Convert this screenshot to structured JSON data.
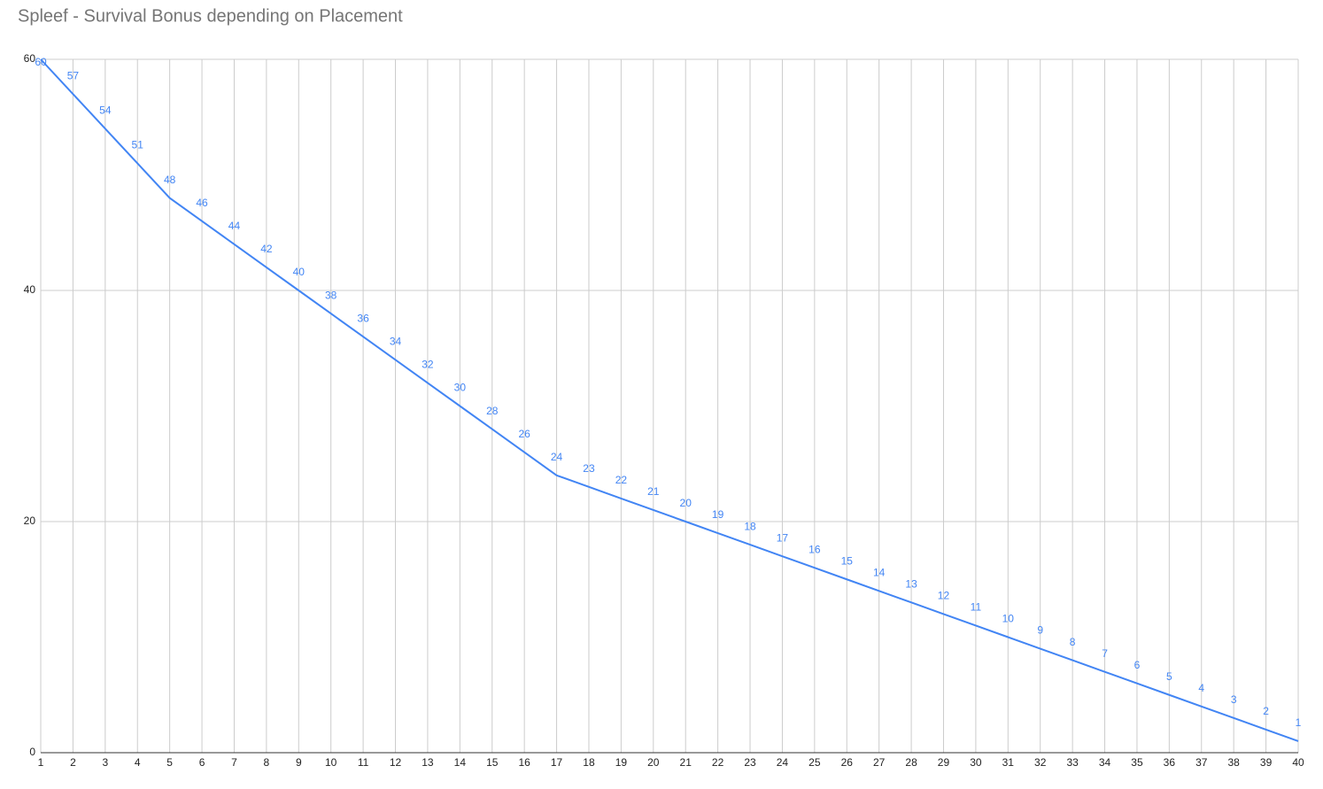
{
  "chart_data": {
    "type": "line",
    "title": "Spleef - Survival Bonus depending on Placement",
    "x": [
      1,
      2,
      3,
      4,
      5,
      6,
      7,
      8,
      9,
      10,
      11,
      12,
      13,
      14,
      15,
      16,
      17,
      18,
      19,
      20,
      21,
      22,
      23,
      24,
      25,
      26,
      27,
      28,
      29,
      30,
      31,
      32,
      33,
      34,
      35,
      36,
      37,
      38,
      39,
      40
    ],
    "series": [
      {
        "name": "Survival Bonus",
        "color": "#4285f4",
        "values": [
          60,
          57,
          54,
          51,
          48,
          46,
          44,
          42,
          40,
          38,
          36,
          34,
          32,
          30,
          28,
          26,
          24,
          23,
          22,
          21,
          20,
          19,
          18,
          17,
          16,
          15,
          14,
          13,
          12,
          11,
          10,
          9,
          8,
          7,
          6,
          5,
          4,
          3,
          2,
          1
        ]
      }
    ],
    "xlim": [
      1,
      40
    ],
    "xticks": [
      1,
      2,
      3,
      4,
      5,
      6,
      7,
      8,
      9,
      10,
      11,
      12,
      13,
      14,
      15,
      16,
      17,
      18,
      19,
      20,
      21,
      22,
      23,
      24,
      25,
      26,
      27,
      28,
      29,
      30,
      31,
      32,
      33,
      34,
      35,
      36,
      37,
      38,
      39,
      40
    ],
    "ylim": [
      0,
      60
    ],
    "yticks": [
      0,
      20,
      40,
      60
    ],
    "grid": true
  }
}
